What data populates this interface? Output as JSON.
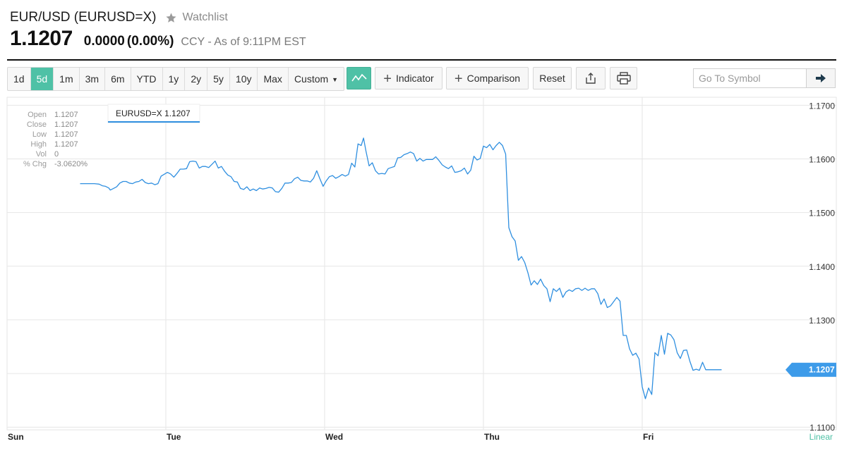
{
  "header": {
    "symbol_title": "EUR/USD (EURUSD=X)",
    "watchlist_label": "Watchlist",
    "price": "1.1207",
    "change": "0.0000",
    "change_pct": "(0.00%)",
    "meta": "CCY - As of 9:11PM EST"
  },
  "toolbar": {
    "ranges": [
      "1d",
      "5d",
      "1m",
      "3m",
      "6m",
      "YTD",
      "1y",
      "2y",
      "5y",
      "10y",
      "Max"
    ],
    "active_range": "5d",
    "custom_label": "Custom",
    "indicator_label": "Indicator",
    "comparison_label": "Comparison",
    "reset_label": "Reset",
    "goto_placeholder": "Go To Symbol"
  },
  "ohlc_panel": {
    "labels": [
      "Open",
      "Close",
      "Low",
      "High",
      "Vol",
      "% Chg"
    ],
    "values": [
      "1.1207",
      "1.1207",
      "1.1207",
      "1.1207",
      "0",
      "-3.0620%"
    ]
  },
  "colors": {
    "accent": "#4fc1a6",
    "line": "#2f8fe0",
    "price_tag": "#3d9be9",
    "grid": "#e6e6e6"
  },
  "chart_data": {
    "type": "line",
    "series_label": "EURUSD=X 1.1207",
    "last_value_label": "1.1207",
    "scale_label": "Linear",
    "xlabel": "",
    "ylabel": "",
    "ylim": [
      1.1095,
      1.1715
    ],
    "x_ticks": [
      {
        "x": 0,
        "label": "Sun"
      },
      {
        "x": 1,
        "label": "Tue"
      },
      {
        "x": 2,
        "label": "Wed"
      },
      {
        "x": 3,
        "label": "Thu"
      },
      {
        "x": 4,
        "label": "Fri"
      }
    ],
    "y_ticks": [
      1.17,
      1.16,
      1.15,
      1.14,
      1.13,
      1.11
    ],
    "y_tick_labels": [
      "1.1700",
      "1.1600",
      "1.1500",
      "1.1400",
      "1.1300",
      "1.1100"
    ],
    "grid": true,
    "series": [
      {
        "name": "EURUSD=X",
        "points": [
          [
            0.46,
            1.1554
          ],
          [
            0.55,
            1.1554
          ],
          [
            0.58,
            1.1553
          ],
          [
            0.6,
            1.155
          ],
          [
            0.62,
            1.1549
          ],
          [
            0.64,
            1.1546
          ],
          [
            0.65,
            1.1542
          ],
          [
            0.67,
            1.1545
          ],
          [
            0.69,
            1.1548
          ],
          [
            0.71,
            1.1555
          ],
          [
            0.73,
            1.1558
          ],
          [
            0.75,
            1.1558
          ],
          [
            0.77,
            1.1555
          ],
          [
            0.79,
            1.1554
          ],
          [
            0.81,
            1.1557
          ],
          [
            0.83,
            1.1558
          ],
          [
            0.85,
            1.1562
          ],
          [
            0.87,
            1.1556
          ],
          [
            0.89,
            1.1554
          ],
          [
            0.91,
            1.1555
          ],
          [
            0.93,
            1.1552
          ],
          [
            0.95,
            1.1554
          ],
          [
            0.97,
            1.1568
          ],
          [
            1.01,
            1.1575
          ],
          [
            1.03,
            1.1572
          ],
          [
            1.05,
            1.1566
          ],
          [
            1.07,
            1.1573
          ],
          [
            1.09,
            1.1581
          ],
          [
            1.11,
            1.1581
          ],
          [
            1.13,
            1.1582
          ],
          [
            1.15,
            1.1595
          ],
          [
            1.17,
            1.1596
          ],
          [
            1.19,
            1.1595
          ],
          [
            1.21,
            1.1583
          ],
          [
            1.23,
            1.1586
          ],
          [
            1.25,
            1.1586
          ],
          [
            1.27,
            1.1584
          ],
          [
            1.29,
            1.159
          ],
          [
            1.31,
            1.1596
          ],
          [
            1.33,
            1.1583
          ],
          [
            1.35,
            1.1586
          ],
          [
            1.37,
            1.1577
          ],
          [
            1.39,
            1.157
          ],
          [
            1.41,
            1.1567
          ],
          [
            1.43,
            1.1558
          ],
          [
            1.45,
            1.1557
          ],
          [
            1.47,
            1.1545
          ],
          [
            1.49,
            1.1543
          ],
          [
            1.51,
            1.1548
          ],
          [
            1.53,
            1.1541
          ],
          [
            1.55,
            1.1544
          ],
          [
            1.57,
            1.1541
          ],
          [
            1.59,
            1.1546
          ],
          [
            1.61,
            1.1544
          ],
          [
            1.63,
            1.1545
          ],
          [
            1.65,
            1.1547
          ],
          [
            1.67,
            1.1546
          ],
          [
            1.69,
            1.1539
          ],
          [
            1.71,
            1.1538
          ],
          [
            1.73,
            1.1545
          ],
          [
            1.75,
            1.1555
          ],
          [
            1.77,
            1.1555
          ],
          [
            1.79,
            1.1556
          ],
          [
            1.81,
            1.1563
          ],
          [
            1.83,
            1.1566
          ],
          [
            1.85,
            1.156
          ],
          [
            1.87,
            1.1559
          ],
          [
            1.89,
            1.1559
          ],
          [
            1.91,
            1.1557
          ],
          [
            1.93,
            1.1564
          ],
          [
            1.95,
            1.1578
          ],
          [
            1.97,
            1.1563
          ],
          [
            1.99,
            1.1549
          ],
          [
            2.01,
            1.1559
          ],
          [
            2.03,
            1.1567
          ],
          [
            2.05,
            1.1569
          ],
          [
            2.07,
            1.1564
          ],
          [
            2.09,
            1.1567
          ],
          [
            2.11,
            1.1571
          ],
          [
            2.13,
            1.1568
          ],
          [
            2.15,
            1.1571
          ],
          [
            2.17,
            1.1592
          ],
          [
            2.19,
            1.1585
          ],
          [
            2.21,
            1.1628
          ],
          [
            2.23,
            1.1625
          ],
          [
            2.245,
            1.1639
          ],
          [
            2.26,
            1.1615
          ],
          [
            2.28,
            1.1587
          ],
          [
            2.3,
            1.1593
          ],
          [
            2.32,
            1.1578
          ],
          [
            2.34,
            1.1572
          ],
          [
            2.36,
            1.1573
          ],
          [
            2.38,
            1.1572
          ],
          [
            2.4,
            1.1582
          ],
          [
            2.42,
            1.1584
          ],
          [
            2.44,
            1.1586
          ],
          [
            2.46,
            1.1602
          ],
          [
            2.48,
            1.1603
          ],
          [
            2.5,
            1.1608
          ],
          [
            2.52,
            1.161
          ],
          [
            2.54,
            1.1613
          ],
          [
            2.56,
            1.161
          ],
          [
            2.58,
            1.1596
          ],
          [
            2.6,
            1.1601
          ],
          [
            2.62,
            1.1596
          ],
          [
            2.64,
            1.1599
          ],
          [
            2.66,
            1.1599
          ],
          [
            2.68,
            1.1599
          ],
          [
            2.7,
            1.1604
          ],
          [
            2.72,
            1.1597
          ],
          [
            2.74,
            1.1589
          ],
          [
            2.76,
            1.1585
          ],
          [
            2.78,
            1.1582
          ],
          [
            2.8,
            1.1587
          ],
          [
            2.82,
            1.1575
          ],
          [
            2.84,
            1.1576
          ],
          [
            2.86,
            1.1578
          ],
          [
            2.88,
            1.1583
          ],
          [
            2.9,
            1.1572
          ],
          [
            2.92,
            1.1579
          ],
          [
            2.94,
            1.1605
          ],
          [
            2.96,
            1.1598
          ],
          [
            2.98,
            1.1601
          ],
          [
            3.0,
            1.1624
          ],
          [
            3.02,
            1.1621
          ],
          [
            3.04,
            1.1627
          ],
          [
            3.06,
            1.1617
          ],
          [
            3.08,
            1.1625
          ],
          [
            3.1,
            1.1631
          ],
          [
            3.12,
            1.1625
          ],
          [
            3.14,
            1.1609
          ],
          [
            3.16,
            1.1472
          ],
          [
            3.18,
            1.1455
          ],
          [
            3.2,
            1.1447
          ],
          [
            3.22,
            1.1411
          ],
          [
            3.24,
            1.1418
          ],
          [
            3.26,
            1.1407
          ],
          [
            3.28,
            1.1388
          ],
          [
            3.3,
            1.1365
          ],
          [
            3.32,
            1.1373
          ],
          [
            3.34,
            1.1366
          ],
          [
            3.36,
            1.1376
          ],
          [
            3.38,
            1.1364
          ],
          [
            3.4,
            1.1358
          ],
          [
            3.42,
            1.1334
          ],
          [
            3.44,
            1.1358
          ],
          [
            3.46,
            1.1353
          ],
          [
            3.48,
            1.1359
          ],
          [
            3.5,
            1.1342
          ],
          [
            3.52,
            1.1352
          ],
          [
            3.54,
            1.1356
          ],
          [
            3.56,
            1.1353
          ],
          [
            3.58,
            1.1358
          ],
          [
            3.6,
            1.1359
          ],
          [
            3.62,
            1.1355
          ],
          [
            3.64,
            1.1359
          ],
          [
            3.66,
            1.1355
          ],
          [
            3.68,
            1.1358
          ],
          [
            3.7,
            1.1358
          ],
          [
            3.72,
            1.1349
          ],
          [
            3.74,
            1.1329
          ],
          [
            3.76,
            1.1339
          ],
          [
            3.78,
            1.1323
          ],
          [
            3.8,
            1.1326
          ],
          [
            3.82,
            1.1334
          ],
          [
            3.84,
            1.1342
          ],
          [
            3.86,
            1.1335
          ],
          [
            3.88,
            1.1271
          ],
          [
            3.9,
            1.1271
          ],
          [
            3.92,
            1.1246
          ],
          [
            3.94,
            1.1234
          ],
          [
            3.96,
            1.1238
          ],
          [
            3.98,
            1.1227
          ],
          [
            4.0,
            1.1175
          ],
          [
            4.02,
            1.1153
          ],
          [
            4.04,
            1.1173
          ],
          [
            4.06,
            1.1161
          ],
          [
            4.08,
            1.1239
          ],
          [
            4.1,
            1.1233
          ],
          [
            4.12,
            1.1271
          ],
          [
            4.14,
            1.1236
          ],
          [
            4.16,
            1.1275
          ],
          [
            4.18,
            1.1272
          ],
          [
            4.2,
            1.1263
          ],
          [
            4.22,
            1.1239
          ],
          [
            4.24,
            1.1228
          ],
          [
            4.26,
            1.1243
          ],
          [
            4.28,
            1.1244
          ],
          [
            4.3,
            1.1223
          ],
          [
            4.32,
            1.1206
          ],
          [
            4.34,
            1.1208
          ],
          [
            4.36,
            1.1206
          ],
          [
            4.38,
            1.1221
          ],
          [
            4.4,
            1.1207
          ],
          [
            4.47,
            1.1207
          ],
          [
            4.5,
            1.1207
          ]
        ]
      }
    ]
  }
}
